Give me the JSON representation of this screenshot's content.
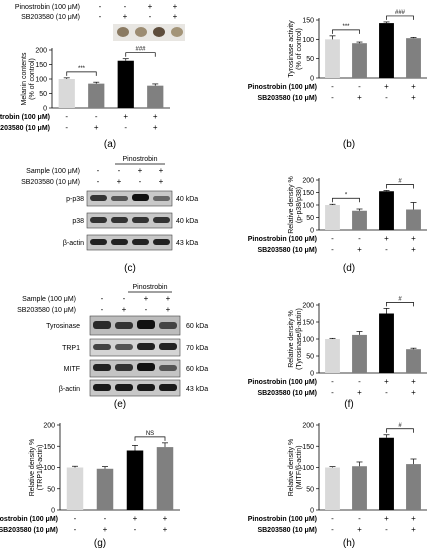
{
  "treatment": {
    "pinostrobin": "Pinostrobin (100 μM)",
    "sb": "SB203580 (10 μM)",
    "sample": "Sample (100 μM)",
    "pinostrobin_header": "Pinostrobin",
    "minus": "-",
    "plus": "+"
  },
  "colors": {
    "bar1": "#d9d9d9",
    "bar2": "#808080",
    "bar3": "#000000",
    "bar4": "#808080"
  },
  "blots": {
    "c": [
      {
        "label": "p-p38",
        "kda": "40 kDa"
      },
      {
        "label": "p38",
        "kda": "40 kDa"
      },
      {
        "label": "β-actin",
        "kda": "43 kDa"
      }
    ],
    "e": [
      {
        "label": "Tyrosinase",
        "kda": "60 kDa"
      },
      {
        "label": "TRP1",
        "kda": "70 kDa"
      },
      {
        "label": "MITF",
        "kda": "60 kDa"
      },
      {
        "label": "β-actin",
        "kda": "43 kDa"
      }
    ]
  },
  "panel_labels": {
    "a": "(a)",
    "b": "(b)",
    "c": "(c)",
    "d": "(d)",
    "e": "(e)",
    "f": "(f)",
    "g": "(g)",
    "h": "(h)"
  },
  "chart_data": [
    {
      "id": "a",
      "type": "bar",
      "ylabel": "Melanin contents (% of control)",
      "ylim": [
        0,
        200
      ],
      "ticks": [
        0,
        50,
        100,
        150,
        200
      ],
      "values": [
        100,
        84,
        163,
        77
      ],
      "errors": [
        4,
        5,
        7,
        6
      ],
      "sig": [
        {
          "from": 0,
          "to": 1,
          "label": "***"
        },
        {
          "from": 2,
          "to": 3,
          "label": "###"
        }
      ]
    },
    {
      "id": "b",
      "type": "bar",
      "ylabel": "Tyrosinase activity (% of control)",
      "ylim": [
        0,
        150
      ],
      "ticks": [
        0,
        50,
        100,
        150
      ],
      "values": [
        100,
        90,
        142,
        103
      ],
      "errors": [
        9,
        3,
        3,
        2
      ],
      "sig": [
        {
          "from": 0,
          "to": 1,
          "label": "***"
        },
        {
          "from": 2,
          "to": 3,
          "label": "###"
        }
      ]
    },
    {
      "id": "d",
      "type": "bar",
      "ylabel": "Relative density % (p-p38/p38)",
      "ylim": [
        0,
        200
      ],
      "ticks": [
        0,
        50,
        100,
        150,
        200
      ],
      "values": [
        100,
        77,
        155,
        82
      ],
      "errors": [
        3,
        7,
        3,
        28
      ],
      "sig": [
        {
          "from": 0,
          "to": 1,
          "label": "*"
        },
        {
          "from": 2,
          "to": 3,
          "label": "#"
        }
      ]
    },
    {
      "id": "f",
      "type": "bar",
      "ylabel": "Relative density % (Tyrosinase/β-actin)",
      "ylim": [
        0,
        200
      ],
      "ticks": [
        0,
        50,
        100,
        150,
        200
      ],
      "values": [
        100,
        112,
        175,
        70
      ],
      "errors": [
        2,
        10,
        15,
        3
      ],
      "sig": [
        {
          "from": 2,
          "to": 3,
          "label": "#"
        }
      ]
    },
    {
      "id": "g",
      "type": "bar",
      "ylabel": "Relative density % (TRP1/β-actin)",
      "ylim": [
        0,
        200
      ],
      "ticks": [
        0,
        50,
        100,
        150,
        200
      ],
      "values": [
        100,
        97,
        140,
        148
      ],
      "errors": [
        3,
        5,
        12,
        10
      ],
      "sig": [
        {
          "from": 2,
          "to": 3,
          "label": "NS"
        }
      ]
    },
    {
      "id": "h",
      "type": "bar",
      "ylabel": "Relative density % (MITF/β-actin)",
      "ylim": [
        0,
        200
      ],
      "ticks": [
        0,
        50,
        100,
        150,
        200
      ],
      "values": [
        100,
        103,
        170,
        108
      ],
      "errors": [
        2,
        10,
        7,
        12
      ],
      "sig": [
        {
          "from": 2,
          "to": 3,
          "label": "#"
        }
      ]
    }
  ]
}
